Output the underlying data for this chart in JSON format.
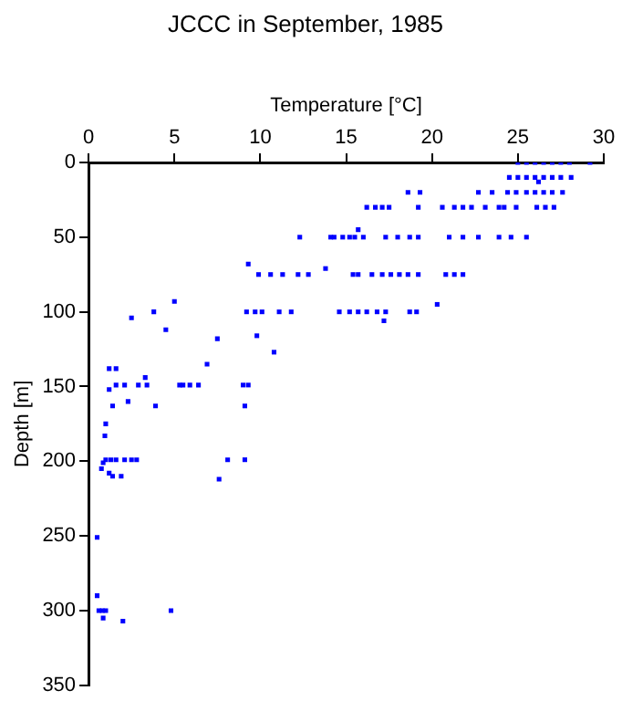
{
  "chart_data": {
    "type": "scatter",
    "title": "JCCC in September, 1985",
    "xlabel": "Temperature [°C]",
    "ylabel": "Depth [m]",
    "xlim": [
      0,
      30
    ],
    "xticks": [
      0,
      5,
      10,
      15,
      20,
      25,
      30
    ],
    "ylim": [
      350,
      0
    ],
    "yticks": [
      0,
      50,
      100,
      150,
      200,
      250,
      300,
      350
    ],
    "grid": false,
    "legend": false,
    "marker": "square",
    "series": [
      {
        "color": "#0000ff",
        "x": [
          25,
          25.5,
          26,
          26.5,
          27,
          27.5,
          28,
          29.2,
          24.5,
          25,
          25.5,
          26,
          26.5,
          27,
          27.5,
          28.1,
          26.2,
          18.6,
          19.3,
          22.7,
          23.5,
          24.4,
          24.9,
          25.5,
          26,
          26.5,
          27,
          27.6,
          16.2,
          16.7,
          17.1,
          17.5,
          19.2,
          20.6,
          21.3,
          21.8,
          22.3,
          23.1,
          23.9,
          24.2,
          24.9,
          26.1,
          26.6,
          27.1,
          15.7,
          12.3,
          14.1,
          14.3,
          14.8,
          15.2,
          15.5,
          16,
          17.3,
          18,
          18.7,
          19.2,
          21,
          21.8,
          22.7,
          23.9,
          24.6,
          25.5,
          9.3,
          9.9,
          10.6,
          11.3,
          12.2,
          12.8,
          13.8,
          15.4,
          15.7,
          16.5,
          17.1,
          17.6,
          18.1,
          18.6,
          19.2,
          20.8,
          21.3,
          21.8,
          3.8,
          9.2,
          9.7,
          10.1,
          11.1,
          11.8,
          14.6,
          15.2,
          15.7,
          16.2,
          16.8,
          17.3,
          18.7,
          19.1,
          20.3,
          17.2,
          5.0,
          2.5,
          4.5,
          9.8,
          7.5,
          10.8,
          6.9,
          1.2,
          1.6,
          3.3,
          1.6,
          2.1,
          2.9,
          3.4,
          5.3,
          5.5,
          5.9,
          6.4,
          9,
          9.3,
          1.2,
          2.3,
          1.4,
          3.9,
          9.1,
          1,
          0.95,
          1.0,
          1.3,
          1.6,
          2.1,
          2.5,
          2.8,
          8.1,
          9.1,
          0.85,
          0.75,
          1.2,
          1.4,
          1.9,
          7.6,
          0.5,
          0.5,
          0.6,
          0.8,
          1.0,
          4.8,
          0.85,
          2.0
        ],
        "values": [
          0,
          0,
          0,
          0,
          0,
          0,
          0,
          0,
          10,
          10,
          10,
          10,
          10,
          10,
          10,
          10,
          13,
          20,
          20,
          20,
          20,
          20,
          20,
          20,
          20,
          20,
          20,
          20,
          30,
          30,
          30,
          30,
          30,
          30,
          30,
          30,
          30,
          30,
          30,
          30,
          30,
          30,
          30,
          30,
          45,
          50,
          50,
          50,
          50,
          50,
          50,
          50,
          50,
          50,
          50,
          50,
          50,
          50,
          50,
          50,
          50,
          50,
          68,
          75,
          75,
          75,
          75,
          75,
          71,
          75,
          75,
          75,
          75,
          75,
          75,
          75,
          75,
          75,
          75,
          75,
          100,
          100,
          100,
          100,
          100,
          100,
          100,
          100,
          100,
          100,
          100,
          100,
          100,
          100,
          95,
          106,
          93,
          104,
          112,
          116,
          118,
          127,
          135,
          138,
          138,
          144,
          149,
          149,
          149,
          149,
          149,
          149,
          149,
          149,
          149,
          149,
          152,
          160,
          163,
          163,
          163,
          175,
          183,
          199,
          199,
          199,
          199,
          199,
          199,
          199,
          199,
          201,
          205,
          208,
          210,
          210,
          212,
          251,
          290,
          300,
          300,
          300,
          300,
          305,
          307
        ]
      }
    ]
  }
}
